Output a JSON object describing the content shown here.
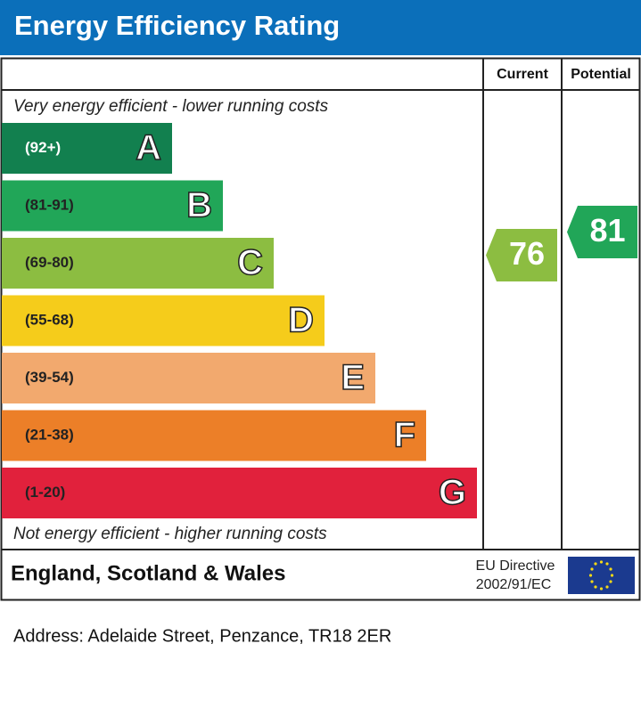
{
  "header": {
    "title": "Energy Efficiency Rating"
  },
  "columns": {
    "current": "Current",
    "potential": "Potential"
  },
  "top_note": "Very energy efficient - lower running costs",
  "bottom_note": "Not energy efficient - higher running costs",
  "bands": [
    {
      "range": "(92+)",
      "letter": "A",
      "color": "#12804f"
    },
    {
      "range": "(81-91)",
      "letter": "B",
      "color": "#21a658"
    },
    {
      "range": "(69-80)",
      "letter": "C",
      "color": "#8cbd41"
    },
    {
      "range": "(55-68)",
      "letter": "D",
      "color": "#f5cc1b"
    },
    {
      "range": "(39-54)",
      "letter": "E",
      "color": "#f2a96e"
    },
    {
      "range": "(21-38)",
      "letter": "F",
      "color": "#ec7f28"
    },
    {
      "range": "(1-20)",
      "letter": "G",
      "color": "#e1213c"
    }
  ],
  "current": {
    "value": 76,
    "band": 2
  },
  "potential": {
    "value": 81,
    "band": 1
  },
  "footer": {
    "region": "England, Scotland & Wales",
    "directive_line1": "EU Directive",
    "directive_line2": "2002/91/EC"
  },
  "address": "Address: Adelaide Street, Penzance, TR18 2ER"
}
